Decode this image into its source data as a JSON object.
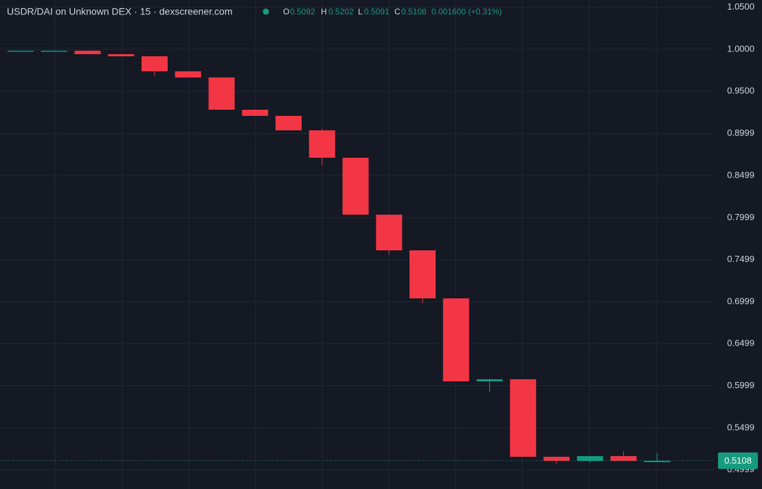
{
  "chart_data": {
    "type": "candlestick",
    "title": "USDR/DAI on Unknown DEX · 15 · dexscreener.com",
    "legend_keys": [
      "O",
      "H",
      "L",
      "C"
    ],
    "change_label": "0.001600 (+0.31%)",
    "up_color": "#149b80",
    "down_color": "#f23645",
    "grid": true,
    "ylim": [
      0.4772,
      1.0587
    ],
    "yticks": [
      {
        "value": 1.05,
        "label": "1.0500"
      },
      {
        "value": 1.0,
        "label": "1.0000"
      },
      {
        "value": 0.95,
        "label": "0.9500"
      },
      0.8999,
      0.8499,
      0.7999,
      0.7499,
      0.6999,
      0.6499,
      0.5999,
      0.5499,
      0.4999
    ],
    "open": [
      0.9983,
      0.9984,
      0.9984,
      0.9943,
      0.9918,
      0.9739,
      0.9666,
      0.9282,
      0.9209,
      0.9037,
      0.8711,
      0.8034,
      0.761,
      0.7039,
      0.6052,
      0.6077,
      0.5155,
      0.5106,
      0.5163,
      0.5092
    ],
    "high": [
      0.9984,
      0.9984,
      0.9984,
      0.9943,
      0.9918,
      0.9739,
      0.9666,
      0.9282,
      0.9209,
      0.9054,
      0.8711,
      0.8034,
      0.761,
      0.7039,
      0.6085,
      0.6077,
      0.5155,
      0.5163,
      0.522,
      0.5202
    ],
    "low": [
      0.9983,
      0.9984,
      0.9943,
      0.9918,
      0.9682,
      0.9666,
      0.9282,
      0.9209,
      0.9037,
      0.8622,
      0.8034,
      0.7561,
      0.6982,
      0.6052,
      0.5922,
      0.5155,
      0.5073,
      0.509,
      0.5106,
      0.5091
    ],
    "close": [
      0.9984,
      0.9984,
      0.9943,
      0.9918,
      0.9739,
      0.9666,
      0.9282,
      0.9209,
      0.9037,
      0.8711,
      0.8034,
      0.761,
      0.7039,
      0.6052,
      0.6077,
      0.5155,
      0.5106,
      0.5163,
      0.5106,
      0.5108
    ]
  }
}
